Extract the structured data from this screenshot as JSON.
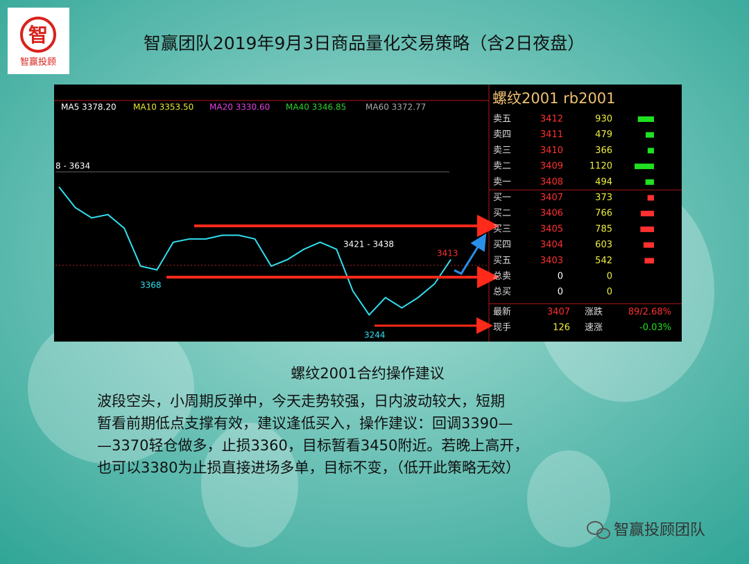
{
  "header": {
    "logo_text": "智赢投顾",
    "logo_char": "智",
    "title": "智赢团队2019年9月3日商品量化交易策略（含2日夜盘）"
  },
  "chart": {
    "ma_labels": [
      "MA5 3378.20",
      "MA10 3353.50",
      "MA20 3330.60",
      "MA40 3346.85",
      "MA60 3372.77"
    ],
    "annotations": [
      "8 - 3634",
      "3368",
      "3421 - 3438",
      "3413",
      "3244"
    ],
    "price": {
      "ylim": [
        3220,
        3680
      ],
      "values": [
        3583,
        3533,
        3508,
        3516,
        3483,
        3391,
        3382,
        3449,
        3457,
        3457,
        3466,
        3466,
        3457,
        3391,
        3407,
        3432,
        3449,
        3432,
        3331,
        3273,
        3315,
        3290,
        3315,
        3348,
        3407
      ]
    }
  },
  "quote": {
    "title": "螺纹2001  rb2001",
    "rows": [
      [
        "卖五",
        3412,
        930
      ],
      [
        "卖四",
        3411,
        479
      ],
      [
        "卖三",
        3410,
        366
      ],
      [
        "卖二",
        3409,
        1120
      ],
      [
        "卖一",
        3408,
        494
      ],
      [
        "买一",
        3407,
        373
      ],
      [
        "买二",
        3406,
        766
      ],
      [
        "买三",
        3405,
        785
      ],
      [
        "买四",
        3404,
        603
      ],
      [
        "买五",
        3403,
        542
      ],
      [
        "总卖",
        0,
        0
      ],
      [
        "总买",
        0,
        0
      ]
    ],
    "stats": [
      [
        "最新",
        3407,
        "涨跌",
        "89/2.68%"
      ],
      [
        "现手",
        126,
        "速涨",
        "-0.03%"
      ]
    ]
  },
  "body": {
    "subtitle": "螺纹2001合约操作建议",
    "lines": [
      "波段空头，小周期反弹中，今天走势较强，日内波动较大，短期",
      "暂看前期低点支撑有效，建议逢低买入，操作建议：回调3390—",
      "—3370轻仓做多，止损3360，目标暂看3450附近。若晚上高开，",
      "也可以3380为止损直接进场多单，目标不变，（低开此策略无效）"
    ]
  },
  "footer": {
    "brand": "智赢投顾团队"
  }
}
